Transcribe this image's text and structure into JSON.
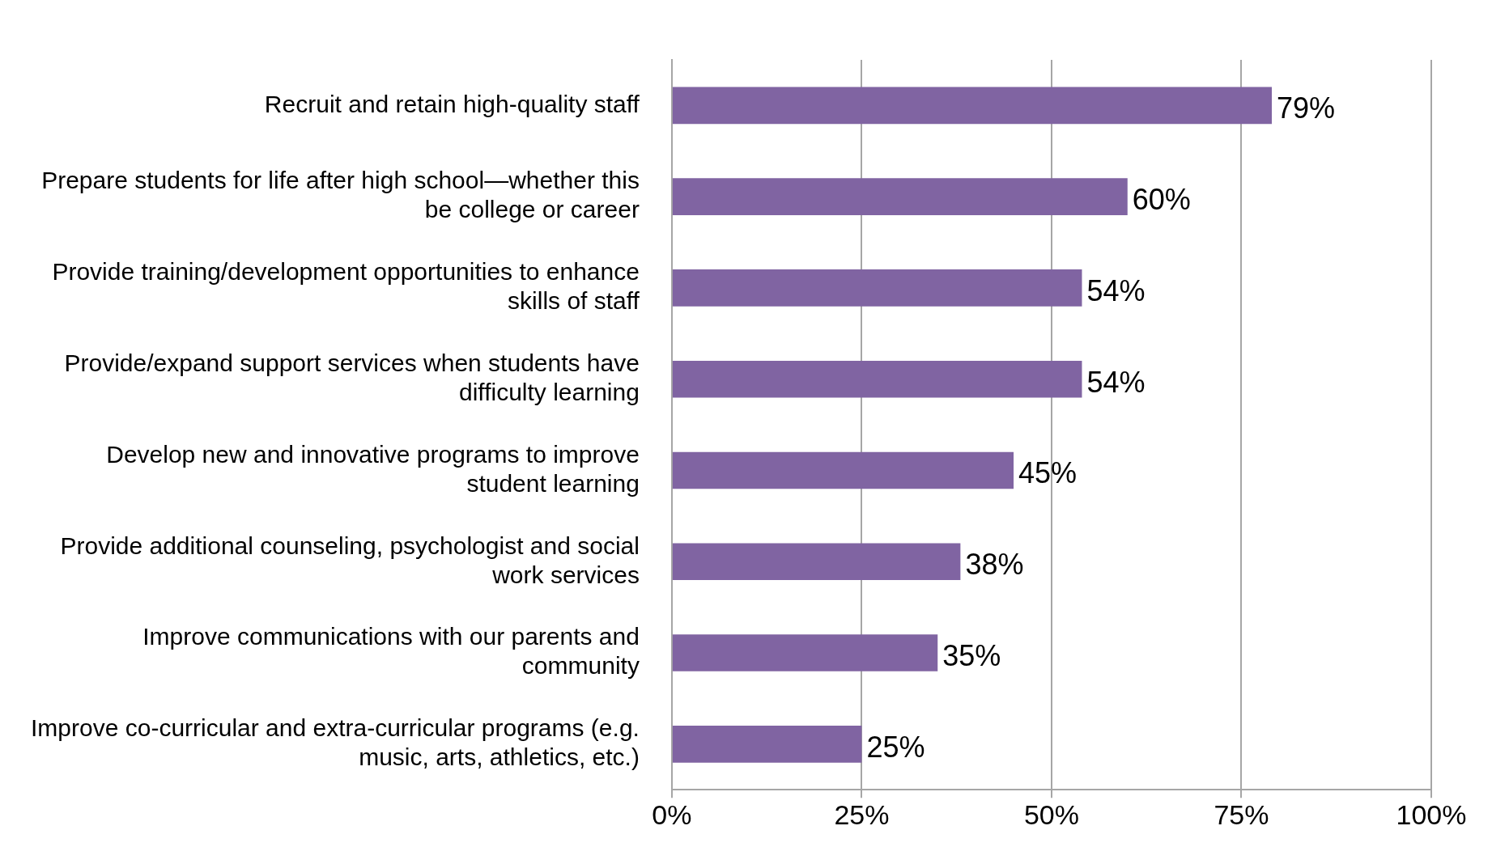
{
  "chart_data": {
    "type": "bar",
    "orientation": "horizontal",
    "categories": [
      "Recruit and retain high-quality staff",
      "Prepare students for life after high school—whether this be college or career",
      "Provide training/development opportunities to enhance skills of staff",
      "Provide/expand support services when students have difficulty learning",
      "Develop new and innovative programs to improve student learning",
      "Provide additional counseling, psychologist and social work services",
      "Improve communications with our parents and community",
      "Improve co-curricular and extra-curricular programs (e.g. music, arts, athletics, etc.)"
    ],
    "values": [
      79,
      60,
      54,
      54,
      45,
      38,
      35,
      25
    ],
    "value_labels": [
      "79%",
      "60%",
      "54%",
      "54%",
      "45%",
      "38%",
      "35%",
      "25%"
    ],
    "color": "#8064a2",
    "xlim": [
      0,
      100
    ],
    "xticks": [
      {
        "value": 0,
        "label": "0%"
      },
      {
        "value": 25,
        "label": "25%"
      },
      {
        "value": 50,
        "label": "50%"
      },
      {
        "value": 75,
        "label": "75%"
      },
      {
        "value": 100,
        "label": "100%"
      }
    ],
    "grid": "x",
    "legend": false
  }
}
